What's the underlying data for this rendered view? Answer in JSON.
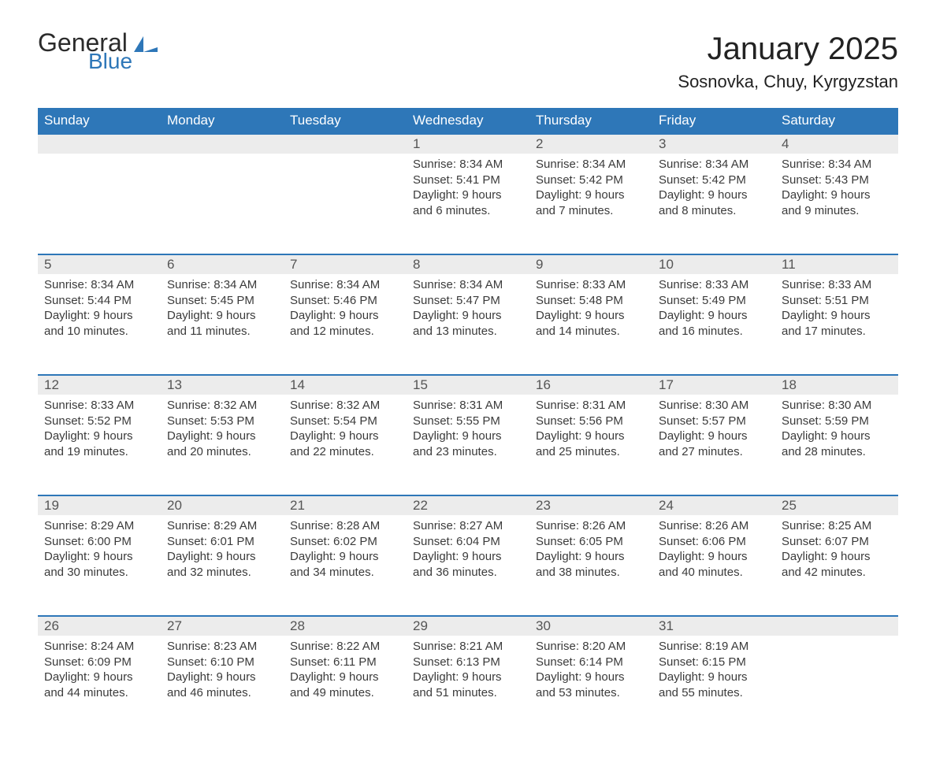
{
  "brand": {
    "part1": "General",
    "part2": "Blue",
    "mark_color": "#2e77b8"
  },
  "title": "January 2025",
  "subtitle": "Sosnovka, Chuy, Kyrgyzstan",
  "columns": [
    "Sunday",
    "Monday",
    "Tuesday",
    "Wednesday",
    "Thursday",
    "Friday",
    "Saturday"
  ],
  "colors": {
    "header_bg": "#2e77b8",
    "header_text": "#ffffff",
    "daynum_bg": "#ececec",
    "border": "#2e77b8",
    "text": "#3b3b3b",
    "background": "#ffffff"
  },
  "typography": {
    "title_fontsize": 40,
    "subtitle_fontsize": 22,
    "header_fontsize": 17,
    "daynum_fontsize": 17,
    "body_fontsize": 15,
    "font_family": "Arial"
  },
  "weeks": [
    [
      null,
      null,
      null,
      {
        "n": "1",
        "sunrise": "Sunrise: 8:34 AM",
        "sunset": "Sunset: 5:41 PM",
        "d1": "Daylight: 9 hours",
        "d2": "and 6 minutes."
      },
      {
        "n": "2",
        "sunrise": "Sunrise: 8:34 AM",
        "sunset": "Sunset: 5:42 PM",
        "d1": "Daylight: 9 hours",
        "d2": "and 7 minutes."
      },
      {
        "n": "3",
        "sunrise": "Sunrise: 8:34 AM",
        "sunset": "Sunset: 5:42 PM",
        "d1": "Daylight: 9 hours",
        "d2": "and 8 minutes."
      },
      {
        "n": "4",
        "sunrise": "Sunrise: 8:34 AM",
        "sunset": "Sunset: 5:43 PM",
        "d1": "Daylight: 9 hours",
        "d2": "and 9 minutes."
      }
    ],
    [
      {
        "n": "5",
        "sunrise": "Sunrise: 8:34 AM",
        "sunset": "Sunset: 5:44 PM",
        "d1": "Daylight: 9 hours",
        "d2": "and 10 minutes."
      },
      {
        "n": "6",
        "sunrise": "Sunrise: 8:34 AM",
        "sunset": "Sunset: 5:45 PM",
        "d1": "Daylight: 9 hours",
        "d2": "and 11 minutes."
      },
      {
        "n": "7",
        "sunrise": "Sunrise: 8:34 AM",
        "sunset": "Sunset: 5:46 PM",
        "d1": "Daylight: 9 hours",
        "d2": "and 12 minutes."
      },
      {
        "n": "8",
        "sunrise": "Sunrise: 8:34 AM",
        "sunset": "Sunset: 5:47 PM",
        "d1": "Daylight: 9 hours",
        "d2": "and 13 minutes."
      },
      {
        "n": "9",
        "sunrise": "Sunrise: 8:33 AM",
        "sunset": "Sunset: 5:48 PM",
        "d1": "Daylight: 9 hours",
        "d2": "and 14 minutes."
      },
      {
        "n": "10",
        "sunrise": "Sunrise: 8:33 AM",
        "sunset": "Sunset: 5:49 PM",
        "d1": "Daylight: 9 hours",
        "d2": "and 16 minutes."
      },
      {
        "n": "11",
        "sunrise": "Sunrise: 8:33 AM",
        "sunset": "Sunset: 5:51 PM",
        "d1": "Daylight: 9 hours",
        "d2": "and 17 minutes."
      }
    ],
    [
      {
        "n": "12",
        "sunrise": "Sunrise: 8:33 AM",
        "sunset": "Sunset: 5:52 PM",
        "d1": "Daylight: 9 hours",
        "d2": "and 19 minutes."
      },
      {
        "n": "13",
        "sunrise": "Sunrise: 8:32 AM",
        "sunset": "Sunset: 5:53 PM",
        "d1": "Daylight: 9 hours",
        "d2": "and 20 minutes."
      },
      {
        "n": "14",
        "sunrise": "Sunrise: 8:32 AM",
        "sunset": "Sunset: 5:54 PM",
        "d1": "Daylight: 9 hours",
        "d2": "and 22 minutes."
      },
      {
        "n": "15",
        "sunrise": "Sunrise: 8:31 AM",
        "sunset": "Sunset: 5:55 PM",
        "d1": "Daylight: 9 hours",
        "d2": "and 23 minutes."
      },
      {
        "n": "16",
        "sunrise": "Sunrise: 8:31 AM",
        "sunset": "Sunset: 5:56 PM",
        "d1": "Daylight: 9 hours",
        "d2": "and 25 minutes."
      },
      {
        "n": "17",
        "sunrise": "Sunrise: 8:30 AM",
        "sunset": "Sunset: 5:57 PM",
        "d1": "Daylight: 9 hours",
        "d2": "and 27 minutes."
      },
      {
        "n": "18",
        "sunrise": "Sunrise: 8:30 AM",
        "sunset": "Sunset: 5:59 PM",
        "d1": "Daylight: 9 hours",
        "d2": "and 28 minutes."
      }
    ],
    [
      {
        "n": "19",
        "sunrise": "Sunrise: 8:29 AM",
        "sunset": "Sunset: 6:00 PM",
        "d1": "Daylight: 9 hours",
        "d2": "and 30 minutes."
      },
      {
        "n": "20",
        "sunrise": "Sunrise: 8:29 AM",
        "sunset": "Sunset: 6:01 PM",
        "d1": "Daylight: 9 hours",
        "d2": "and 32 minutes."
      },
      {
        "n": "21",
        "sunrise": "Sunrise: 8:28 AM",
        "sunset": "Sunset: 6:02 PM",
        "d1": "Daylight: 9 hours",
        "d2": "and 34 minutes."
      },
      {
        "n": "22",
        "sunrise": "Sunrise: 8:27 AM",
        "sunset": "Sunset: 6:04 PM",
        "d1": "Daylight: 9 hours",
        "d2": "and 36 minutes."
      },
      {
        "n": "23",
        "sunrise": "Sunrise: 8:26 AM",
        "sunset": "Sunset: 6:05 PM",
        "d1": "Daylight: 9 hours",
        "d2": "and 38 minutes."
      },
      {
        "n": "24",
        "sunrise": "Sunrise: 8:26 AM",
        "sunset": "Sunset: 6:06 PM",
        "d1": "Daylight: 9 hours",
        "d2": "and 40 minutes."
      },
      {
        "n": "25",
        "sunrise": "Sunrise: 8:25 AM",
        "sunset": "Sunset: 6:07 PM",
        "d1": "Daylight: 9 hours",
        "d2": "and 42 minutes."
      }
    ],
    [
      {
        "n": "26",
        "sunrise": "Sunrise: 8:24 AM",
        "sunset": "Sunset: 6:09 PM",
        "d1": "Daylight: 9 hours",
        "d2": "and 44 minutes."
      },
      {
        "n": "27",
        "sunrise": "Sunrise: 8:23 AM",
        "sunset": "Sunset: 6:10 PM",
        "d1": "Daylight: 9 hours",
        "d2": "and 46 minutes."
      },
      {
        "n": "28",
        "sunrise": "Sunrise: 8:22 AM",
        "sunset": "Sunset: 6:11 PM",
        "d1": "Daylight: 9 hours",
        "d2": "and 49 minutes."
      },
      {
        "n": "29",
        "sunrise": "Sunrise: 8:21 AM",
        "sunset": "Sunset: 6:13 PM",
        "d1": "Daylight: 9 hours",
        "d2": "and 51 minutes."
      },
      {
        "n": "30",
        "sunrise": "Sunrise: 8:20 AM",
        "sunset": "Sunset: 6:14 PM",
        "d1": "Daylight: 9 hours",
        "d2": "and 53 minutes."
      },
      {
        "n": "31",
        "sunrise": "Sunrise: 8:19 AM",
        "sunset": "Sunset: 6:15 PM",
        "d1": "Daylight: 9 hours",
        "d2": "and 55 minutes."
      },
      null
    ]
  ]
}
